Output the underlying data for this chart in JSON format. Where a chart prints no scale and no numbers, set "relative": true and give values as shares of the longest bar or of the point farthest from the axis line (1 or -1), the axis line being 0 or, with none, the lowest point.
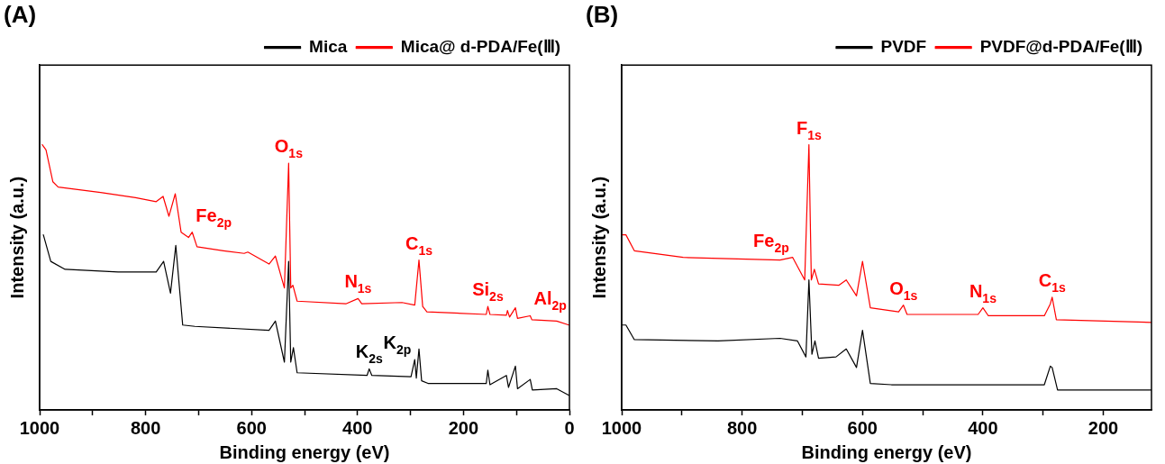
{
  "chart_data": [
    {
      "type": "line",
      "title": "(A)",
      "xlabel": "Binding energy (eV)",
      "ylabel": "Intensity (a.u.)",
      "relative": true,
      "legend": "top right",
      "grid": false,
      "xlim": [
        1000,
        0
      ],
      "xticks": [
        1000,
        {
          "value": 900,
          "label": null
        },
        800,
        {
          "value": 700,
          "label": null
        },
        600,
        {
          "value": 500,
          "label": null
        },
        400,
        {
          "value": 300,
          "label": null
        },
        200,
        {
          "value": 100,
          "label": null
        },
        0
      ],
      "series": [
        {
          "name": "Mica",
          "color": "#000000",
          "x": [
            993,
            979,
            952,
            852,
            780,
            766,
            753,
            743,
            730,
            707,
            567,
            555,
            538,
            530,
            526,
            521,
            514,
            382,
            378,
            373,
            299,
            292,
            289,
            284,
            279,
            267,
            157,
            154,
            150,
            119,
            115,
            102,
            98,
            74,
            70,
            24,
            1
          ],
          "values": [
            0.66,
            0.56,
            0.53,
            0.52,
            0.52,
            0.56,
            0.44,
            0.62,
            0.32,
            0.315,
            0.3,
            0.335,
            0.18,
            0.56,
            0.18,
            0.235,
            0.14,
            0.13,
            0.155,
            0.13,
            0.125,
            0.19,
            0.12,
            0.23,
            0.11,
            0.1,
            0.1,
            0.15,
            0.095,
            0.13,
            0.085,
            0.165,
            0.08,
            0.115,
            0.075,
            0.08,
            0.055
          ]
        },
        {
          "name": "Mica@ d-PDA/Fe(Ⅲ)",
          "color": "#ff0000",
          "x": [
            995,
            988,
            975,
            965,
            885,
            819,
            780,
            767,
            756,
            744,
            733,
            719,
            712,
            703,
            653,
            614,
            607,
            567,
            555,
            538,
            530,
            526,
            522,
            514,
            422,
            399,
            392,
            316,
            292,
            284,
            277,
            269,
            157,
            154,
            150,
            119,
            117,
            113,
            102,
            98,
            74,
            71,
            24,
            1
          ],
          "values": [
            1.0,
            0.98,
            0.86,
            0.84,
            0.82,
            0.8,
            0.785,
            0.805,
            0.73,
            0.815,
            0.67,
            0.65,
            0.67,
            0.615,
            0.6,
            0.59,
            0.595,
            0.55,
            0.58,
            0.46,
            0.93,
            0.46,
            0.47,
            0.41,
            0.4,
            0.42,
            0.4,
            0.405,
            0.395,
            0.565,
            0.39,
            0.37,
            0.36,
            0.39,
            0.36,
            0.357,
            0.375,
            0.35,
            0.385,
            0.345,
            0.355,
            0.34,
            0.335,
            0.32
          ]
        }
      ],
      "annotations": [
        {
          "text": "O$_{1s}$",
          "x": 530,
          "y": 0.93
        },
        {
          "text": "Fe$_{2p}$",
          "x": 712,
          "y": 0.67
        },
        {
          "text": "N$_{1s}$",
          "x": 399,
          "y": 0.42
        },
        {
          "text": "C$_{1s}$",
          "x": 284,
          "y": 0.565
        },
        {
          "text": "Si$_{2s}$",
          "x": 154,
          "y": 0.39
        },
        {
          "text": "Al$_{2p}$",
          "x": 74,
          "y": 0.355
        },
        {
          "text": "K$_{2s}$",
          "x": 378,
          "y": 0.155
        },
        {
          "text": "K$_{2p}$",
          "x": 292,
          "y": 0.19
        }
      ]
    },
    {
      "type": "line",
      "title": "(B)",
      "xlabel": "Binding energy (eV)",
      "ylabel": "Intensity (a.u.)",
      "relative": true,
      "legend": "top right",
      "grid": false,
      "xlim": [
        1000,
        120
      ],
      "xticks": [
        1000,
        {
          "value": 900,
          "label": null
        },
        800,
        {
          "value": 700,
          "label": null
        },
        600,
        {
          "value": 500,
          "label": null
        },
        400,
        {
          "value": 300,
          "label": null
        },
        200
      ],
      "series": [
        {
          "name": "PVDF",
          "color": "#000000",
          "x": [
            1000,
            993,
            979,
            840,
            737,
            708,
            694,
            689,
            684,
            679,
            673,
            644,
            627,
            610,
            600,
            587,
            552,
            298,
            288,
            285,
            276,
            120
          ],
          "values": [
            0.32,
            0.32,
            0.265,
            0.26,
            0.27,
            0.26,
            0.2,
            0.49,
            0.21,
            0.26,
            0.195,
            0.2,
            0.23,
            0.16,
            0.3,
            0.1,
            0.095,
            0.095,
            0.165,
            0.16,
            0.075,
            0.075
          ]
        },
        {
          "name": "PVDF@d-PDA/Fe(Ⅲ)",
          "color": "#ff0000",
          "x": [
            1000,
            993,
            979,
            898,
            737,
            716,
            696,
            689,
            685,
            680,
            673,
            639,
            627,
            610,
            600,
            587,
            540,
            532,
            526,
            408,
            400,
            391,
            298,
            288,
            285,
            278,
            120
          ],
          "values": [
            0.66,
            0.66,
            0.6,
            0.575,
            0.565,
            0.575,
            0.49,
            1.0,
            0.49,
            0.53,
            0.475,
            0.47,
            0.49,
            0.43,
            0.56,
            0.385,
            0.37,
            0.395,
            0.36,
            0.36,
            0.385,
            0.355,
            0.355,
            0.4,
            0.425,
            0.34,
            0.33
          ]
        }
      ],
      "annotations": [
        {
          "text": "F$_{1s}$",
          "x": 689,
          "y": 1.0
        },
        {
          "text": "Fe$_{2p}$",
          "x": 716,
          "y": 0.575
        },
        {
          "text": "O$_{1s}$",
          "x": 532,
          "y": 0.395
        },
        {
          "text": "N$_{1s}$",
          "x": 400,
          "y": 0.385
        },
        {
          "text": "C$_{1s}$",
          "x": 285,
          "y": 0.425
        }
      ]
    }
  ]
}
